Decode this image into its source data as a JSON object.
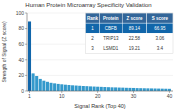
{
  "chart_data": {
    "type": "bar",
    "title": "Human Protein Microarray Specificity Validation",
    "xlabel": "Signal Rank (Top 40)",
    "ylabel": "Strength of Signal (Z score)",
    "x": [
      1,
      2,
      3,
      4,
      5,
      6,
      7,
      8,
      9,
      10,
      11,
      12,
      13,
      14,
      15,
      16,
      17,
      18,
      19,
      20,
      21,
      22,
      23,
      24,
      25,
      26,
      27,
      28,
      29,
      30,
      31,
      32,
      33,
      34,
      35,
      36,
      37,
      38,
      39,
      40
    ],
    "values": [
      89.14,
      22.58,
      19.21,
      15.5,
      13.2,
      11.8,
      10.5,
      9.8,
      9.1,
      8.6,
      8.1,
      7.7,
      7.3,
      7.0,
      6.7,
      6.4,
      6.2,
      5.9,
      5.7,
      5.5,
      5.3,
      5.1,
      4.9,
      4.7,
      4.6,
      4.4,
      4.3,
      4.1,
      4.0,
      3.9,
      3.7,
      3.6,
      3.5,
      3.4,
      3.3,
      3.2,
      3.1,
      3.0,
      2.9,
      2.8
    ],
    "colors": [
      "#1166aa",
      "#3399cc",
      "#3399cc",
      "#3399cc",
      "#3399cc",
      "#3399cc",
      "#3399cc",
      "#3399cc",
      "#3399cc",
      "#3399cc",
      "#3399cc",
      "#3399cc",
      "#3399cc",
      "#3399cc",
      "#3399cc",
      "#3399cc",
      "#3399cc",
      "#3399cc",
      "#3399cc",
      "#3399cc",
      "#3399cc",
      "#3399cc",
      "#3399cc",
      "#3399cc",
      "#3399cc",
      "#3399cc",
      "#3399cc",
      "#3399cc",
      "#3399cc",
      "#3399cc",
      "#3399cc",
      "#3399cc",
      "#3399cc",
      "#3399cc",
      "#3399cc",
      "#3399cc",
      "#3399cc",
      "#3399cc",
      "#3399cc",
      "#3399cc"
    ],
    "xlim": [
      0.3,
      41
    ],
    "xticks": [
      1,
      10,
      20,
      30,
      40
    ],
    "ylim": [
      0,
      100
    ],
    "yticks": [
      0,
      20,
      40,
      60,
      80,
      100
    ],
    "table": {
      "headers": [
        "Rank",
        "Protein",
        "Z score",
        "S score"
      ],
      "rows": [
        [
          "1",
          "CBFB",
          "89.14",
          "66.95"
        ],
        [
          "2",
          "TRIP13",
          "22.58",
          "3.06"
        ],
        [
          "3",
          "LSMD1",
          "19.21",
          "3.4"
        ]
      ]
    }
  }
}
